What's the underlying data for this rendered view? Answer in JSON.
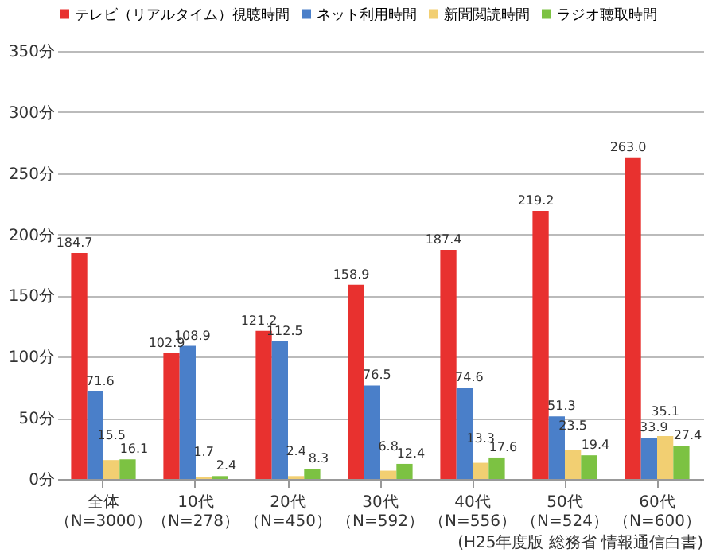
{
  "chart_data": {
    "type": "bar",
    "categories": [
      "全体（N=3000）",
      "10代（N=278）",
      "20代（N=450）",
      "30代（N=592）",
      "40代（N=556）",
      "50代（N=524）",
      "60代（N=600）"
    ],
    "series": [
      {
        "name": "テレビ（リアルタイム）視聴時間",
        "color": "#e8312f",
        "values": [
          184.7,
          102.9,
          121.2,
          158.9,
          187.4,
          219.2,
          263.0
        ],
        "value_labels": [
          "184.7",
          "102.9",
          "121.2",
          "158.9",
          "187.4",
          "219.2",
          "263.0"
        ]
      },
      {
        "name": "ネット利用時間",
        "color": "#4a7fc9",
        "values": [
          71.6,
          108.9,
          112.5,
          76.5,
          74.6,
          51.3,
          33.9
        ],
        "value_labels": [
          "71.6",
          "108.9",
          "112.5",
          "76.5",
          "74.6",
          "51.3",
          "33.9"
        ]
      },
      {
        "name": "新聞閲読時間",
        "color": "#f2cf72",
        "values": [
          15.5,
          1.7,
          2.4,
          6.8,
          13.3,
          23.5,
          35.1
        ],
        "value_labels": [
          "15.5",
          "1.7",
          "2.4",
          "6.8",
          "13.3",
          "23.5",
          "35.1"
        ]
      },
      {
        "name": "ラジオ聴取時間",
        "color": "#7cc242",
        "values": [
          16.1,
          2.4,
          8.3,
          12.4,
          17.6,
          19.4,
          27.4
        ],
        "value_labels": [
          "16.1",
          "2.4",
          "8.3",
          "12.4",
          "17.6",
          "19.4",
          "27.4"
        ]
      }
    ],
    "ylim": [
      0,
      350
    ],
    "yticks": [
      {
        "value": 0,
        "label": "0分"
      },
      {
        "value": 50,
        "label": "50分"
      },
      {
        "value": 100,
        "label": "100分"
      },
      {
        "value": 150,
        "label": "150分"
      },
      {
        "value": 200,
        "label": "200分"
      },
      {
        "value": 250,
        "label": "250分"
      },
      {
        "value": 300,
        "label": "300分"
      },
      {
        "value": 350,
        "label": "350分"
      }
    ],
    "grid": "y",
    "legend": "top",
    "annotations": [
      "(H25年度版 総務省 情報通信白書)"
    ]
  }
}
